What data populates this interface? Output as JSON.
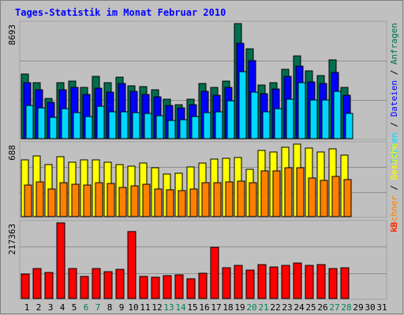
{
  "title": "Tages-Statistik im Monat Februar 2010",
  "colors": {
    "frame_bg": "#c0c0c0",
    "plot_bg": "#c0c0c0",
    "title": "#0000ff",
    "border": "#a0a0a0",
    "grid": "#909090",
    "hits": "#006f4f",
    "files": "#0000ff",
    "pages": "#00d7ff",
    "visits": "#ffff00",
    "sites": "#ff8000",
    "kbytes": "#ff0000",
    "weekday": "#000000",
    "weekend": "#00805c",
    "legend_sep": "#000000"
  },
  "chart_data": [
    {
      "type": "bar",
      "panel": "top",
      "max_label": "8693",
      "ymax": 8693,
      "legend": [
        "Anfragen",
        "Dateien",
        "Seiten"
      ],
      "legend_separator": "/",
      "series": [
        {
          "name": "Anfragen",
          "values": [
            4900,
            4250,
            3050,
            4250,
            4350,
            3850,
            4700,
            4200,
            4650,
            4000,
            3900,
            3700,
            2950,
            2550,
            2950,
            4150,
            3850,
            4350,
            8693,
            6800,
            4050,
            4250,
            5250,
            6250,
            5150,
            4750,
            5950,
            3850,
            0,
            0,
            0
          ]
        },
        {
          "name": "Dateien",
          "values": [
            4200,
            3700,
            2750,
            3700,
            3850,
            3350,
            3800,
            3500,
            4150,
            3600,
            3350,
            3150,
            2500,
            2350,
            2550,
            3600,
            3300,
            3850,
            7200,
            5900,
            3400,
            3750,
            4700,
            5500,
            4300,
            4150,
            5000,
            3300,
            0,
            0,
            0
          ]
        },
        {
          "name": "Seiten",
          "values": [
            2500,
            2350,
            1600,
            2250,
            1950,
            1650,
            2450,
            2000,
            2050,
            1950,
            1900,
            1700,
            1350,
            1400,
            1650,
            1950,
            2000,
            2850,
            5050,
            3500,
            2000,
            2250,
            3000,
            4200,
            2900,
            2900,
            3550,
            1900,
            0,
            0,
            0
          ]
        }
      ]
    },
    {
      "type": "bar",
      "panel": "middle",
      "max_label": "688",
      "ymax": 688,
      "legend": [
        "Besuche",
        "Rechner"
      ],
      "legend_separator": "/",
      "series": [
        {
          "name": "Besuche",
          "values": [
            535,
            575,
            490,
            565,
            515,
            535,
            535,
            515,
            495,
            480,
            510,
            460,
            405,
            410,
            470,
            510,
            545,
            550,
            560,
            450,
            630,
            610,
            660,
            688,
            650,
            610,
            640,
            580,
            0,
            0,
            0
          ]
        },
        {
          "name": "Rechner",
          "values": [
            300,
            330,
            260,
            320,
            305,
            300,
            320,
            315,
            280,
            290,
            310,
            265,
            255,
            245,
            260,
            320,
            325,
            330,
            335,
            320,
            430,
            435,
            460,
            460,
            370,
            345,
            385,
            355,
            0,
            0,
            0
          ]
        }
      ]
    },
    {
      "type": "bar",
      "panel": "bottom",
      "max_label": "217363",
      "ymax": 217363,
      "legend": [
        "kB"
      ],
      "series": [
        {
          "name": "kB",
          "values": [
            70000,
            86000,
            74000,
            217363,
            86000,
            64000,
            86000,
            78000,
            84000,
            192000,
            64000,
            62000,
            66000,
            67000,
            56000,
            72000,
            147000,
            88000,
            96000,
            82000,
            98000,
            90000,
            96000,
            102000,
            94000,
            98000,
            87000,
            88000,
            0,
            0,
            0
          ]
        }
      ]
    }
  ],
  "days": [
    "1",
    "2",
    "3",
    "4",
    "5",
    "6",
    "7",
    "8",
    "9",
    "10",
    "11",
    "12",
    "13",
    "14",
    "15",
    "16",
    "17",
    "18",
    "19",
    "20",
    "21",
    "22",
    "23",
    "24",
    "25",
    "26",
    "27",
    "28",
    "29",
    "30",
    "31"
  ],
  "weekend_days": [
    6,
    7,
    13,
    14,
    20,
    21,
    27,
    28
  ]
}
